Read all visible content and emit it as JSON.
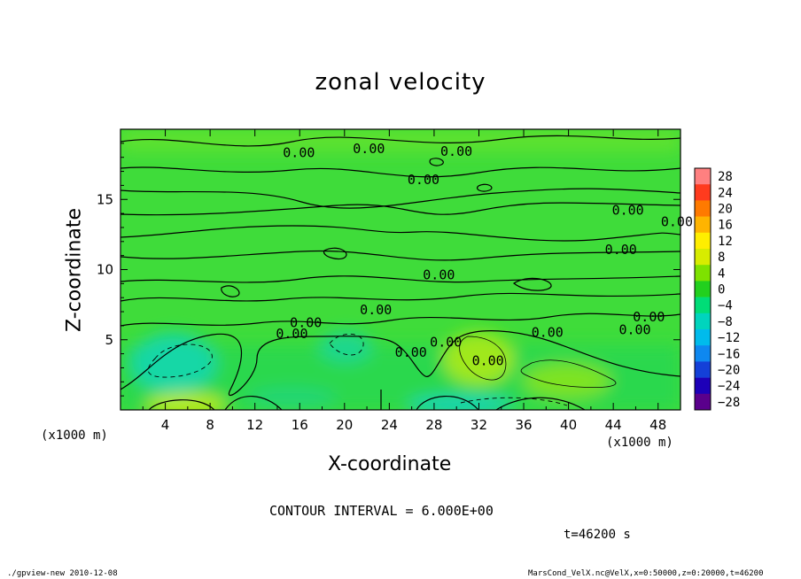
{
  "chart_data": {
    "type": "heatmap",
    "title": "zonal velocity",
    "xlabel": "X-coordinate",
    "ylabel": "Z-coordinate",
    "x_unit_left": "(x1000 m)",
    "x_unit_right": "(x1000 m)",
    "xlim": [
      0,
      50
    ],
    "ylim": [
      0,
      20
    ],
    "x_ticks": [
      4,
      8,
      12,
      16,
      20,
      24,
      28,
      32,
      36,
      40,
      44,
      48
    ],
    "y_ticks": [
      5,
      10,
      15
    ],
    "colorbar": {
      "levels": [
        28,
        24,
        20,
        16,
        12,
        8,
        4,
        0,
        -4,
        -8,
        -12,
        -16,
        -20,
        -24,
        -28
      ],
      "colors": [
        "#ff8080",
        "#ff3b1e",
        "#ff7a00",
        "#ffb400",
        "#ffee00",
        "#d7ec00",
        "#7ee200",
        "#22d01e",
        "#00dd77",
        "#00d4bd",
        "#00bbec",
        "#0e88f0",
        "#1440d8",
        "#1d00b8",
        "#5a008c"
      ]
    },
    "contour_label": "0.00",
    "contour_interval_text": "CONTOUR INTERVAL = 6.000E+00",
    "time_text": "t=46200 s",
    "features": [
      {
        "x": 5,
        "z": 3.8,
        "value": -6,
        "kind": "negative"
      },
      {
        "x": 19.5,
        "z": 4.6,
        "value": -6,
        "kind": "negative"
      },
      {
        "x": 34,
        "z": 3.6,
        "value": 6,
        "kind": "positive"
      },
      {
        "x": 6,
        "z": 0.5,
        "value": 6,
        "kind": "positive"
      },
      {
        "x": 35,
        "z": 0.5,
        "value": -6,
        "kind": "negative"
      }
    ]
  },
  "footer": {
    "left": "./gpview-new  2010-12-08",
    "right": "MarsCond_VelX.nc@VelX,x=0:50000,z=0:20000,t=46200"
  }
}
